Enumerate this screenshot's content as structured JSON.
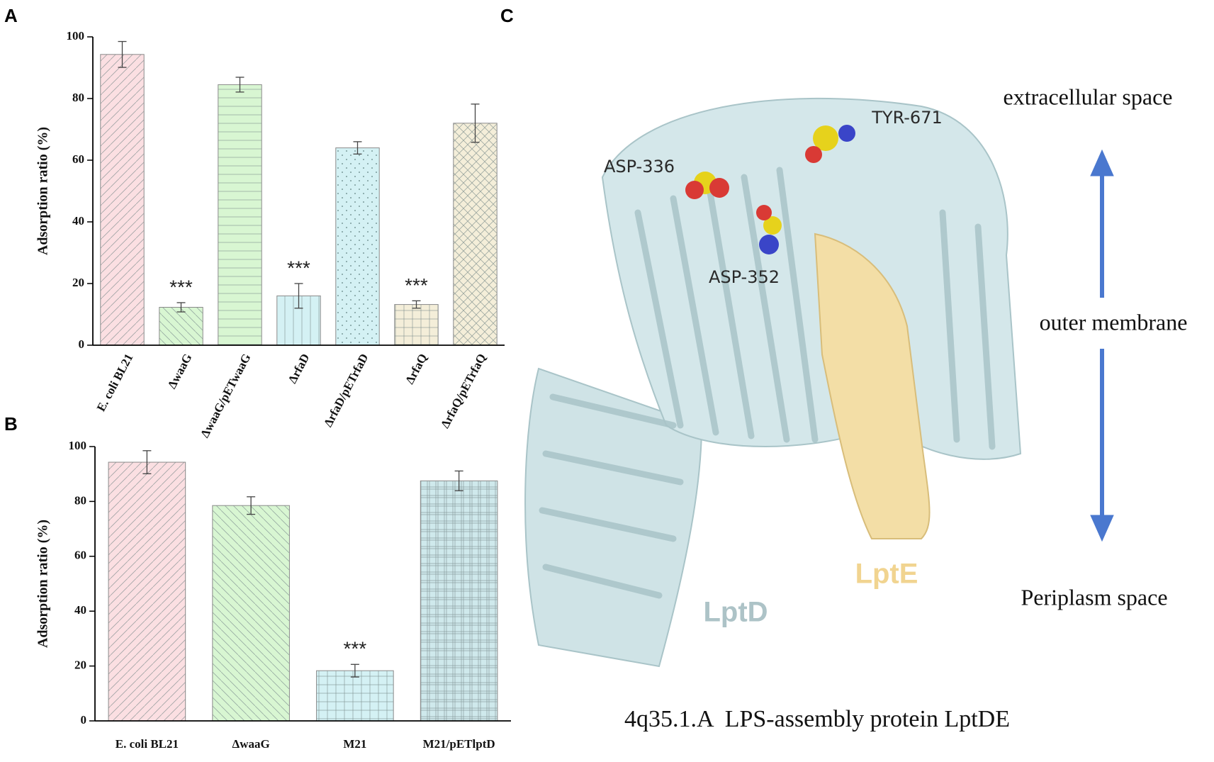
{
  "chart_data": [
    {
      "type": "bar",
      "panel_label": "A",
      "y_label": "Adsorption ratio (%)",
      "categories": [
        "E. coli BL21",
        "ΔwaaG",
        "ΔwaaG/pETwaaG",
        "ΔrfaD",
        "ΔrfaD/pETrfaD",
        "ΔrfaQ",
        "ΔrfaQ/pETrfaQ"
      ],
      "values": [
        94.3,
        12.3,
        84.5,
        16,
        64,
        13.2,
        72
      ],
      "errors": [
        4.2,
        1.5,
        2.4,
        4,
        2,
        1.2,
        6.2
      ],
      "significance": [
        null,
        "***",
        null,
        "***",
        null,
        "***",
        null
      ],
      "colors": [
        "#fbdfe2",
        "#d8f6d2",
        "#d8f6d2",
        "#d4f1f4",
        "#d4f1f4",
        "#f4eed9",
        "#f4eed9"
      ],
      "hatches": [
        "diagonal",
        "back-diagonal",
        "horizontal",
        "vertical",
        "dots",
        "grid",
        "cross"
      ],
      "ylim": [
        0,
        100
      ],
      "yticks": [
        0,
        20,
        40,
        60,
        80,
        100
      ]
    },
    {
      "type": "bar",
      "panel_label": "B",
      "y_label": "Adsorption ratio (%)",
      "categories": [
        "E. coli BL21",
        "ΔwaaG",
        "M21",
        "M21/pETlptD"
      ],
      "values": [
        94.3,
        78.5,
        18.3,
        87.5
      ],
      "errors": [
        4.2,
        3.2,
        2.3,
        3.6
      ],
      "significance": [
        null,
        null,
        "***",
        null
      ],
      "colors": [
        "#fbdfe2",
        "#d8f6d2",
        "#d4f1f4",
        "#cfe9ec"
      ],
      "hatches": [
        "diagonal",
        "back-diagonal",
        "grid",
        "plaid"
      ],
      "ylim": [
        0,
        100
      ],
      "yticks": [
        0,
        20,
        40,
        60,
        80,
        100
      ]
    }
  ],
  "panel_c": {
    "panel_label": "C",
    "extracellular": "extracellular space",
    "membrane": "outer membrane",
    "periplasm": "Periplasm space",
    "residues": [
      "ASP-336",
      "TYR-671",
      "ASP-352"
    ],
    "lptd": "LptD",
    "lpte": "LptE",
    "caption": "4q35.1.A  LPS-assembly protein LptDE"
  }
}
